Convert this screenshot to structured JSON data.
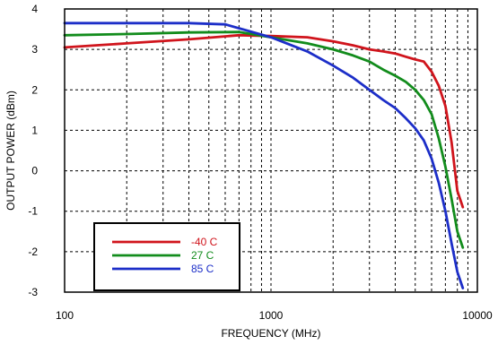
{
  "chart_data": {
    "type": "line",
    "title": "",
    "xlabel": "FREQUENCY (MHz)",
    "ylabel": "OUTPUT POWER (dBm)",
    "xscale": "log",
    "xlim": [
      100,
      10000
    ],
    "ylim": [
      -3,
      4
    ],
    "grid": true,
    "legend_position": "bottom-left",
    "x_ticks": [
      {
        "value": 100,
        "label": "100"
      },
      {
        "value": 1000,
        "label": "1000"
      },
      {
        "value": 10000,
        "label": "10000"
      }
    ],
    "y_ticks": [
      {
        "value": -3,
        "label": "-3"
      },
      {
        "value": -2,
        "label": "-2"
      },
      {
        "value": -1,
        "label": "-1"
      },
      {
        "value": 0,
        "label": "0"
      },
      {
        "value": 1,
        "label": "1"
      },
      {
        "value": 2,
        "label": "2"
      },
      {
        "value": 3,
        "label": "3"
      },
      {
        "value": 4,
        "label": "4"
      }
    ],
    "series": [
      {
        "name": "-40 C",
        "color": "#d0141c",
        "points": [
          [
            100,
            3.05
          ],
          [
            200,
            3.15
          ],
          [
            400,
            3.25
          ],
          [
            700,
            3.35
          ],
          [
            1000,
            3.33
          ],
          [
            1500,
            3.3
          ],
          [
            2000,
            3.2
          ],
          [
            2500,
            3.1
          ],
          [
            3000,
            3.0
          ],
          [
            3500,
            2.95
          ],
          [
            4000,
            2.9
          ],
          [
            4500,
            2.82
          ],
          [
            5000,
            2.75
          ],
          [
            5500,
            2.7
          ],
          [
            6000,
            2.45
          ],
          [
            6500,
            2.1
          ],
          [
            7000,
            1.6
          ],
          [
            7500,
            0.7
          ],
          [
            8000,
            -0.5
          ],
          [
            8500,
            -0.9
          ]
        ]
      },
      {
        "name": "27 C",
        "color": "#128c1c",
        "points": [
          [
            100,
            3.35
          ],
          [
            200,
            3.38
          ],
          [
            400,
            3.42
          ],
          [
            700,
            3.43
          ],
          [
            1000,
            3.3
          ],
          [
            1500,
            3.15
          ],
          [
            2000,
            3.0
          ],
          [
            2500,
            2.85
          ],
          [
            3000,
            2.7
          ],
          [
            3500,
            2.5
          ],
          [
            4000,
            2.35
          ],
          [
            4500,
            2.2
          ],
          [
            5000,
            2.0
          ],
          [
            5500,
            1.75
          ],
          [
            6000,
            1.4
          ],
          [
            6500,
            0.8
          ],
          [
            7000,
            0.1
          ],
          [
            7500,
            -0.7
          ],
          [
            8000,
            -1.5
          ],
          [
            8500,
            -1.9
          ]
        ]
      },
      {
        "name": "85 C",
        "color": "#1c2ec8",
        "points": [
          [
            100,
            3.65
          ],
          [
            200,
            3.65
          ],
          [
            400,
            3.65
          ],
          [
            600,
            3.62
          ],
          [
            1000,
            3.3
          ],
          [
            1500,
            2.95
          ],
          [
            2000,
            2.6
          ],
          [
            2500,
            2.3
          ],
          [
            3000,
            2.0
          ],
          [
            3500,
            1.75
          ],
          [
            4000,
            1.55
          ],
          [
            4500,
            1.3
          ],
          [
            5000,
            1.05
          ],
          [
            5500,
            0.75
          ],
          [
            6000,
            0.3
          ],
          [
            6500,
            -0.3
          ],
          [
            7000,
            -1.0
          ],
          [
            7500,
            -1.8
          ],
          [
            8000,
            -2.5
          ],
          [
            8500,
            -2.9
          ]
        ]
      }
    ]
  }
}
